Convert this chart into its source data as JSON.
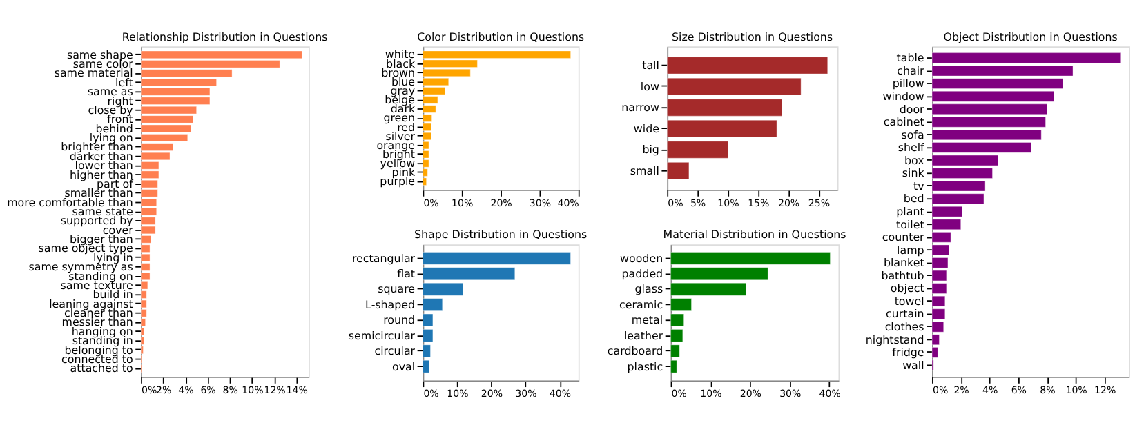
{
  "chart_data": [
    {
      "type": "bar",
      "orientation": "horizontal",
      "title": "Relationship Distribution in Questions",
      "color": "#ff7f50",
      "grid": false,
      "categories": [
        "same shape",
        "same color",
        "same material",
        "left",
        "same as",
        "right",
        "close by",
        "front",
        "behind",
        "lying on",
        "brighter than",
        "darker than",
        "lower than",
        "higher than",
        "part of",
        "smaller than",
        "more comfortable than",
        "same state",
        "supported by",
        "cover",
        "bigger than",
        "same object type",
        "lying in",
        "same symmetry as",
        "standing on",
        "same texture",
        "build in",
        "leaning against",
        "cleaner than",
        "messier than",
        "hanging on",
        "standing in",
        "belonging to",
        "connected to",
        "attached to"
      ],
      "values": [
        14.5,
        12.5,
        8.2,
        6.8,
        6.2,
        6.2,
        5.0,
        4.7,
        4.5,
        4.2,
        2.9,
        2.6,
        1.6,
        1.6,
        1.5,
        1.5,
        1.4,
        1.4,
        1.3,
        1.3,
        0.9,
        0.8,
        0.8,
        0.8,
        0.8,
        0.6,
        0.5,
        0.5,
        0.5,
        0.4,
        0.3,
        0.3,
        0.2,
        0.1,
        0.1
      ],
      "xlim": [
        0,
        15.1
      ],
      "xticks": [
        {
          "value": 0,
          "label": "0%"
        },
        {
          "value": 2,
          "label": "2%"
        },
        {
          "value": 4,
          "label": "4%"
        },
        {
          "value": 6,
          "label": "6%"
        },
        {
          "value": 8,
          "label": "8%"
        },
        {
          "value": 10,
          "label": "10%"
        },
        {
          "value": 12,
          "label": "12%"
        },
        {
          "value": 14,
          "label": "14%"
        }
      ]
    },
    {
      "type": "bar",
      "orientation": "horizontal",
      "title": "Color Distribution in Questions",
      "color": "#ffa500",
      "grid": false,
      "categories": [
        "white",
        "black",
        "brown",
        "blue",
        "gray",
        "beige",
        "dark",
        "green",
        "red",
        "silver",
        "orange",
        "bright",
        "yellow",
        "pink",
        "purple"
      ],
      "values": [
        38.0,
        14.0,
        12.2,
        6.6,
        5.7,
        3.8,
        3.3,
        2.3,
        2.2,
        2.2,
        1.5,
        1.5,
        1.5,
        1.2,
        0.9
      ],
      "xlim": [
        0,
        40
      ],
      "xticks": [
        {
          "value": 0,
          "label": "0%"
        },
        {
          "value": 10,
          "label": "10%"
        },
        {
          "value": 20,
          "label": "20%"
        },
        {
          "value": 30,
          "label": "30%"
        },
        {
          "value": 40,
          "label": "40%"
        }
      ]
    },
    {
      "type": "bar",
      "orientation": "horizontal",
      "title": "Size Distribution in Questions",
      "color": "#a52a2a",
      "grid": false,
      "categories": [
        "tall",
        "low",
        "narrow",
        "wide",
        "big",
        "small"
      ],
      "values": [
        26.5,
        22.1,
        19.0,
        18.1,
        10.1,
        3.6
      ],
      "xlim": [
        0,
        28.1
      ],
      "xticks": [
        {
          "value": 0,
          "label": "0%"
        },
        {
          "value": 5,
          "label": "5%"
        },
        {
          "value": 10,
          "label": "10%"
        },
        {
          "value": 15,
          "label": "15%"
        },
        {
          "value": 20,
          "label": "20%"
        },
        {
          "value": 25,
          "label": "25%"
        }
      ]
    },
    {
      "type": "bar",
      "orientation": "horizontal",
      "title": "Shape Distribution in Questions",
      "color": "#1f77b4",
      "grid": false,
      "categories": [
        "rectangular",
        "flat",
        "square",
        "L-shaped",
        "round",
        "semicircular",
        "circular",
        "oval"
      ],
      "values": [
        43.2,
        26.9,
        11.7,
        5.7,
        2.9,
        2.9,
        2.2,
        1.9
      ],
      "xlim": [
        0,
        45.5
      ],
      "xticks": [
        {
          "value": 0,
          "label": "0%"
        },
        {
          "value": 10,
          "label": "10%"
        },
        {
          "value": 20,
          "label": "20%"
        },
        {
          "value": 30,
          "label": "30%"
        },
        {
          "value": 40,
          "label": "40%"
        }
      ]
    },
    {
      "type": "bar",
      "orientation": "horizontal",
      "title": "Material Distribution in Questions",
      "color": "#008000",
      "grid": false,
      "categories": [
        "wooden",
        "padded",
        "glass",
        "ceramic",
        "metal",
        "leather",
        "cardboard",
        "plastic"
      ],
      "values": [
        40.2,
        24.5,
        19.0,
        5.2,
        3.3,
        3.0,
        2.2,
        1.5
      ],
      "xlim": [
        0,
        42.3
      ],
      "xticks": [
        {
          "value": 0,
          "label": "0%"
        },
        {
          "value": 10,
          "label": "10%"
        },
        {
          "value": 20,
          "label": "20%"
        },
        {
          "value": 30,
          "label": "30%"
        },
        {
          "value": 40,
          "label": "40%"
        }
      ]
    },
    {
      "type": "bar",
      "orientation": "horizontal",
      "title": "Object Distribution in Questions",
      "color": "#800080",
      "grid": false,
      "categories": [
        "table",
        "chair",
        "pillow",
        "window",
        "door",
        "cabinet",
        "sofa",
        "shelf",
        "box",
        "sink",
        "tv",
        "bed",
        "plant",
        "toilet",
        "counter",
        "lamp",
        "blanket",
        "bathtub",
        "object",
        "towel",
        "curtain",
        "clothes",
        "nightstand",
        "fridge",
        "wall"
      ],
      "values": [
        13.1,
        9.8,
        9.1,
        8.5,
        8.0,
        7.9,
        7.6,
        6.9,
        4.6,
        4.2,
        3.7,
        3.6,
        2.1,
        2.0,
        1.3,
        1.2,
        1.1,
        1.0,
        1.0,
        0.9,
        0.9,
        0.8,
        0.5,
        0.4,
        0.1
      ],
      "xlim": [
        0,
        13.7
      ],
      "xticks": [
        {
          "value": 0,
          "label": "0%"
        },
        {
          "value": 2,
          "label": "2%"
        },
        {
          "value": 4,
          "label": "4%"
        },
        {
          "value": 6,
          "label": "6%"
        },
        {
          "value": 8,
          "label": "8%"
        },
        {
          "value": 10,
          "label": "10%"
        },
        {
          "value": 12,
          "label": "12%"
        }
      ]
    }
  ]
}
